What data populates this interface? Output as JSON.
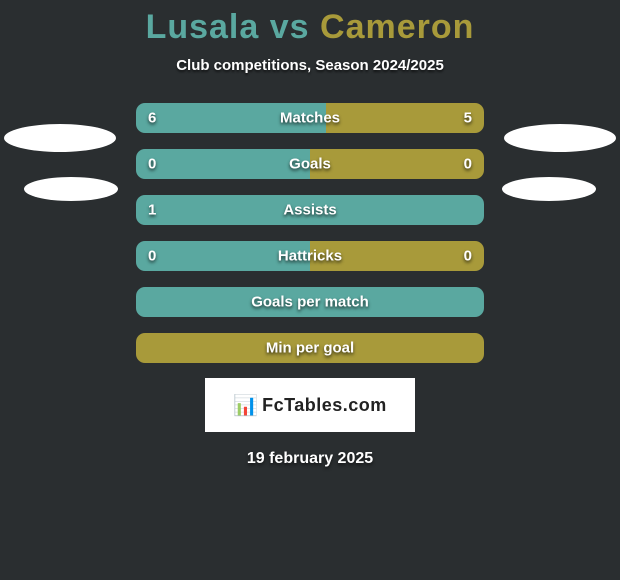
{
  "title": {
    "p1": "Lusala",
    "vs": "vs",
    "p2": "Cameron"
  },
  "subtitle": "Club competitions, Season 2024/2025",
  "colors": {
    "left": "#5aa8a0",
    "right": "#a89a3a",
    "rowBg": "#2a2e30"
  },
  "rows": [
    {
      "label": "Matches",
      "left": "6",
      "right": "5",
      "leftPct": 54.5,
      "rightPct": 45.5,
      "showVals": true
    },
    {
      "label": "Goals",
      "left": "0",
      "right": "0",
      "leftPct": 50,
      "rightPct": 50,
      "showVals": true
    },
    {
      "label": "Assists",
      "left": "1",
      "right": "",
      "leftPct": 100,
      "rightPct": 0,
      "showVals": true
    },
    {
      "label": "Hattricks",
      "left": "0",
      "right": "0",
      "leftPct": 50,
      "rightPct": 50,
      "showVals": true
    },
    {
      "label": "Goals per match",
      "left": "",
      "right": "",
      "leftPct": 100,
      "rightPct": 0,
      "showVals": false
    },
    {
      "label": "Min per goal",
      "left": "",
      "right": "",
      "leftPct": 0,
      "rightPct": 100,
      "showVals": false
    }
  ],
  "brand": {
    "icon": "📊",
    "text": "FcTables.com"
  },
  "date": "19 february 2025"
}
